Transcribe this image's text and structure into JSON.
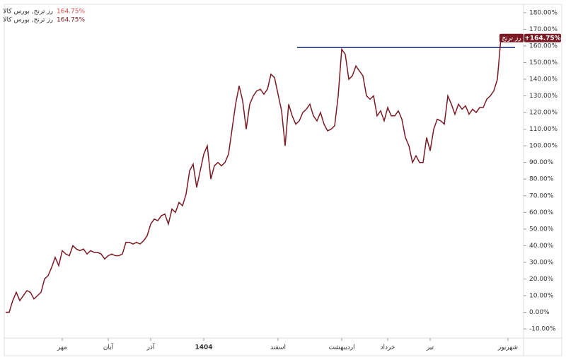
{
  "chart_data": {
    "type": "line",
    "legend": [
      {
        "name": "رز ترنج, بورس کالا",
        "value_label": "164.75%"
      },
      {
        "name": "رز ترنج, بورس کالا",
        "value_label": "164.75%"
      }
    ],
    "last_tag": {
      "name": "رز ترنج",
      "value_label": "+164.75%"
    },
    "series": [
      {
        "name": "رز ترنج, بورس کالا",
        "color": "#7b1a24",
        "x": [
          0,
          1,
          2,
          3,
          4,
          5,
          6,
          7,
          8,
          9,
          10,
          11,
          12,
          13,
          14,
          15,
          16,
          17,
          18,
          19,
          20,
          21,
          22,
          23,
          24,
          25,
          26,
          27,
          28,
          29,
          30,
          31,
          32,
          33,
          34,
          35,
          36,
          37,
          38,
          39,
          40,
          41,
          42,
          43,
          44,
          45,
          46,
          47,
          48,
          49,
          50,
          51,
          52,
          53,
          54,
          55,
          56,
          57,
          58,
          59,
          60,
          61,
          62,
          63,
          64,
          65,
          66,
          67,
          68,
          69,
          70,
          71,
          72,
          73,
          74,
          75,
          76,
          77,
          78,
          79,
          80,
          81,
          82,
          83,
          84,
          85,
          86,
          87,
          88,
          89,
          90,
          91,
          92,
          93,
          94,
          95,
          96,
          97,
          98,
          99,
          100,
          101,
          102,
          103,
          104,
          105,
          106,
          107,
          108,
          109,
          110,
          111,
          112,
          113,
          114,
          115,
          116,
          117,
          118,
          119,
          120,
          121,
          122,
          123,
          124,
          125,
          126,
          127,
          128,
          129,
          130,
          131,
          132,
          133,
          134,
          135,
          136,
          137,
          138,
          139,
          140
        ],
        "values": [
          0,
          0,
          7,
          12,
          7,
          10,
          13,
          12,
          8,
          10,
          12,
          20,
          22,
          27,
          33,
          28,
          37,
          35,
          34,
          40,
          38,
          37,
          38,
          35,
          37,
          36,
          36,
          35,
          32,
          34,
          35,
          34,
          34,
          35,
          42,
          42,
          41,
          42,
          41,
          43,
          46,
          53,
          56,
          55,
          58,
          59,
          53,
          62,
          60,
          66,
          64,
          71,
          85,
          89,
          75,
          85,
          95,
          100,
          80,
          88,
          90,
          88,
          90,
          95,
          110,
          125,
          136,
          127,
          110,
          125,
          130,
          133,
          134,
          131,
          134,
          143,
          141,
          131,
          121,
          100,
          125,
          118,
          113,
          115,
          120,
          122,
          125,
          118,
          115,
          120,
          113,
          109,
          110,
          112,
          130,
          158,
          155,
          140,
          142,
          148,
          145,
          142,
          130,
          128,
          130,
          118,
          121,
          115,
          123,
          118,
          118,
          121,
          116,
          105,
          100,
          90,
          94,
          90,
          90,
          105,
          97,
          110,
          116,
          115,
          113,
          130,
          125,
          119,
          125,
          122,
          124,
          119,
          122,
          120,
          123,
          123,
          128,
          130,
          133,
          140,
          164.75
        ]
      }
    ],
    "hline": {
      "y": 159,
      "x": [
        82.4,
        144
      ]
    },
    "xlim": [
      0,
      146
    ],
    "xticks": [
      {
        "value": 16,
        "label": "مهر"
      },
      {
        "value": 29,
        "label": "آبان"
      },
      {
        "value": 41,
        "label": "آذر"
      },
      {
        "value": 56,
        "label": "1404"
      },
      {
        "value": 77,
        "label": "اسفند"
      },
      {
        "value": 95,
        "label": "اردیبهشت"
      },
      {
        "value": 108,
        "label": "خرداد"
      },
      {
        "value": 120,
        "label": "تیر"
      },
      {
        "value": 142,
        "label": "شهریور"
      }
    ],
    "ylim": [
      -15.5,
      184.2
    ],
    "yticks": [
      {
        "value": -10,
        "label": "-10.00%"
      },
      {
        "value": 0,
        "label": "0.00%"
      },
      {
        "value": 10,
        "label": "10.00%"
      },
      {
        "value": 20,
        "label": "20.00%"
      },
      {
        "value": 30,
        "label": "30.00%"
      },
      {
        "value": 40,
        "label": "40.00%"
      },
      {
        "value": 50,
        "label": "50.00%"
      },
      {
        "value": 60,
        "label": "60.00%"
      },
      {
        "value": 70,
        "label": "70.00%"
      },
      {
        "value": 80,
        "label": "80.00%"
      },
      {
        "value": 90,
        "label": "90.00%"
      },
      {
        "value": 100,
        "label": "100.00%"
      },
      {
        "value": 110,
        "label": "110.00%"
      },
      {
        "value": 120,
        "label": "120.00%"
      },
      {
        "value": 130,
        "label": "130.00%"
      },
      {
        "value": 140,
        "label": "140.00%"
      },
      {
        "value": 150,
        "label": "150.00%"
      },
      {
        "value": 160,
        "label": "160.00%"
      },
      {
        "value": 170,
        "label": "170.00%"
      },
      {
        "value": 180,
        "label": "180.00%"
      }
    ],
    "hline_color": "#1f3a7a"
  }
}
